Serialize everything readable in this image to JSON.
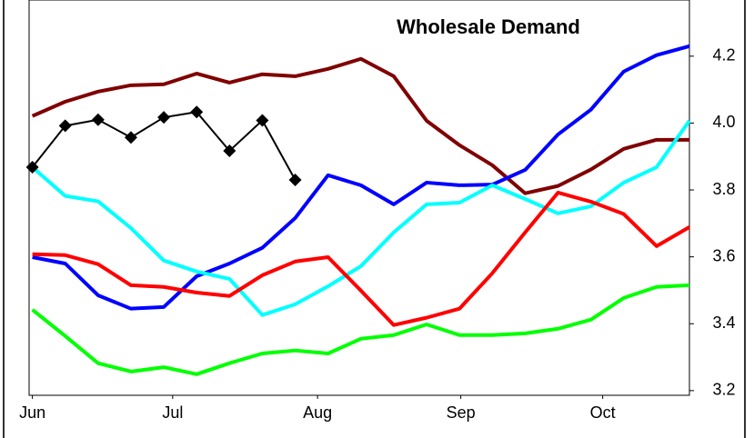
{
  "chart_data": {
    "type": "line",
    "title": "Wholesale Demand",
    "x": [
      0,
      1,
      2,
      3,
      4,
      5,
      6,
      7,
      8,
      9,
      10,
      11,
      12,
      13,
      14,
      15,
      16,
      17,
      18,
      19,
      20
    ],
    "xlim": [
      -0.1,
      20
    ],
    "xticks": [
      {
        "value": 0,
        "label": "Jun"
      },
      {
        "value": 4.27,
        "label": "Jul"
      },
      {
        "value": 8.68,
        "label": "Aug"
      },
      {
        "value": 13.04,
        "label": "Sep"
      },
      {
        "value": 17.36,
        "label": "Oct"
      }
    ],
    "ylim": [
      3.186,
      4.368
    ],
    "yticks": [
      {
        "value": 3.2,
        "label": "3.2"
      },
      {
        "value": 3.4,
        "label": "3.4"
      },
      {
        "value": 3.6,
        "label": "3.6"
      },
      {
        "value": 3.8,
        "label": "3.8"
      },
      {
        "value": 4.0,
        "label": "4.0"
      },
      {
        "value": 4.2,
        "label": "4.2"
      }
    ],
    "series": [
      {
        "color": "#800000",
        "values": [
          4.021,
          4.064,
          4.094,
          4.113,
          4.116,
          4.148,
          4.121,
          4.146,
          4.14,
          4.162,
          4.192,
          4.14,
          4.007,
          3.934,
          3.874,
          3.79,
          3.812,
          3.861,
          3.923,
          3.95,
          3.95
        ]
      },
      {
        "color": "#0000ff",
        "values": [
          3.599,
          3.58,
          3.485,
          3.445,
          3.45,
          3.542,
          3.58,
          3.627,
          3.716,
          3.844,
          3.814,
          3.757,
          3.822,
          3.814,
          3.816,
          3.86,
          3.966,
          4.04,
          4.154,
          4.203,
          4.23
        ]
      },
      {
        "color": "#00ffff",
        "values": [
          3.868,
          3.782,
          3.766,
          3.686,
          3.589,
          3.556,
          3.534,
          3.426,
          3.458,
          3.512,
          3.572,
          3.673,
          3.757,
          3.762,
          3.814,
          3.773,
          3.73,
          3.751,
          3.822,
          3.868,
          4.007
        ]
      },
      {
        "color": "#ff0000",
        "values": [
          3.608,
          3.605,
          3.578,
          3.515,
          3.51,
          3.493,
          3.483,
          3.545,
          3.586,
          3.599,
          3.499,
          3.396,
          3.418,
          3.445,
          3.551,
          3.673,
          3.792,
          3.765,
          3.728,
          3.632,
          3.689
        ]
      },
      {
        "color": "#00ff00",
        "values": [
          3.442,
          3.363,
          3.282,
          3.257,
          3.27,
          3.249,
          3.282,
          3.311,
          3.32,
          3.311,
          3.355,
          3.366,
          3.398,
          3.366,
          3.366,
          3.371,
          3.385,
          3.412,
          3.477,
          3.51,
          3.515
        ]
      },
      {
        "color": "#000000",
        "marker": "diamond",
        "values": [
          3.868,
          3.992,
          4.01,
          3.957,
          4.017,
          4.033,
          3.917,
          4.008,
          3.83,
          null,
          null,
          null,
          null,
          null,
          null,
          null,
          null,
          null,
          null,
          null,
          null
        ]
      }
    ]
  }
}
